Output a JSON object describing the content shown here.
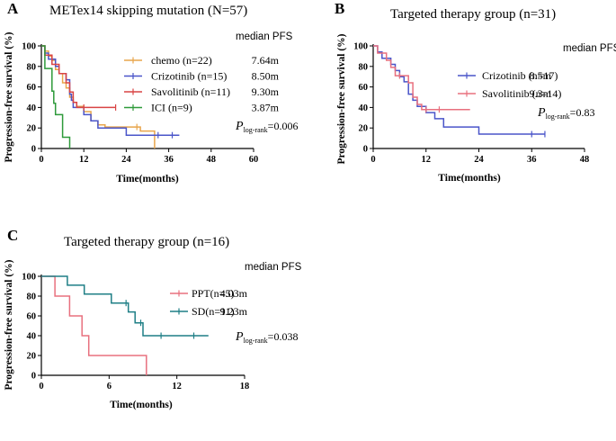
{
  "chart_data": [
    {
      "type": "line",
      "panel": "A",
      "title": "METex14 skipping mutation (N=57)",
      "xlabel": "Time(months)",
      "ylabel": "Progression-free survival (%)",
      "xticks": [
        0,
        12,
        24,
        36,
        48,
        60
      ],
      "yticks": [
        0,
        20,
        40,
        60,
        80,
        100
      ],
      "xlim": [
        0,
        60
      ],
      "ylim": [
        0,
        100
      ],
      "median_header": "median PFS",
      "p_value": {
        "italic": "P",
        "sub": "log-rank",
        "value": "=0.006"
      },
      "series": [
        {
          "name": "chemo  (n=22)",
          "median": "7.64m",
          "color": "#e8a54b",
          "points": [
            [
              0,
              100
            ],
            [
              1,
              95
            ],
            [
              2,
              90
            ],
            [
              3,
              86
            ],
            [
              4,
              77
            ],
            [
              5,
              73
            ],
            [
              6,
              64
            ],
            [
              7,
              59
            ],
            [
              8,
              50
            ],
            [
              9,
              45
            ],
            [
              10,
              41
            ],
            [
              12,
              36
            ],
            [
              14,
              27
            ],
            [
              16,
              23
            ],
            [
              18,
              21
            ],
            [
              26,
              21
            ],
            [
              28,
              17
            ],
            [
              32,
              17
            ],
            [
              32,
              0
            ]
          ],
          "censors": [
            [
              27,
              21
            ]
          ]
        },
        {
          "name": "Crizotinib (n=15)",
          "median": "8.50m",
          "color": "#4a55c9",
          "points": [
            [
              0,
              100
            ],
            [
              1,
              93
            ],
            [
              2,
              87
            ],
            [
              4,
              80
            ],
            [
              5,
              73
            ],
            [
              7,
              67
            ],
            [
              8,
              53
            ],
            [
              8.5,
              47
            ],
            [
              9,
              40
            ],
            [
              12,
              33
            ],
            [
              14,
              27
            ],
            [
              16,
              20
            ],
            [
              24,
              13
            ],
            [
              39,
              13
            ]
          ],
          "censors": [
            [
              33,
              13
            ],
            [
              37,
              13
            ]
          ]
        },
        {
          "name": "Savolitinib (n=11)",
          "median": "9.30m",
          "color": "#d94444",
          "points": [
            [
              0,
              100
            ],
            [
              1,
              91
            ],
            [
              3,
              82
            ],
            [
              5,
              73
            ],
            [
              7,
              64
            ],
            [
              8,
              55
            ],
            [
              9,
              45
            ],
            [
              10,
              40
            ],
            [
              21,
              40
            ]
          ],
          "censors": [
            [
              12,
              40
            ],
            [
              21,
              40
            ]
          ]
        },
        {
          "name": "ICI  (n=9)",
          "median": "3.87m",
          "color": "#2e9a3a",
          "points": [
            [
              0,
              100
            ],
            [
              1,
              78
            ],
            [
              2,
              78
            ],
            [
              3,
              56
            ],
            [
              3.5,
              44
            ],
            [
              4,
              33
            ],
            [
              5,
              33
            ],
            [
              6,
              11
            ],
            [
              8,
              11
            ],
            [
              8,
              0
            ]
          ],
          "censors": []
        }
      ]
    },
    {
      "type": "line",
      "panel": "B",
      "title": "Targeted therapy group (n=31)",
      "xlabel": "Time(months)",
      "ylabel": "Progression-free survival (%)",
      "xticks": [
        0,
        12,
        24,
        36,
        48
      ],
      "yticks": [
        0,
        20,
        40,
        60,
        80,
        100
      ],
      "xlim": [
        0,
        48
      ],
      "ylim": [
        0,
        100
      ],
      "median_header": "median PFS",
      "p_value": {
        "italic": "P",
        "sub": "log-rank",
        "value": "=0.83"
      },
      "series": [
        {
          "name": "Crizotinib (n=17)",
          "median": "8.5m",
          "color": "#4a55c9",
          "points": [
            [
              0,
              100
            ],
            [
              1,
              94
            ],
            [
              2,
              88
            ],
            [
              4,
              82
            ],
            [
              5,
              76
            ],
            [
              6,
              70
            ],
            [
              7,
              65
            ],
            [
              8,
              53
            ],
            [
              9,
              47
            ],
            [
              10,
              41
            ],
            [
              12,
              35
            ],
            [
              14,
              29
            ],
            [
              16,
              21
            ],
            [
              24,
              21
            ],
            [
              24,
              14
            ],
            [
              39,
              14
            ]
          ],
          "censors": [
            [
              36,
              14
            ],
            [
              39,
              14
            ]
          ]
        },
        {
          "name": "Savolitinib (n=14)",
          "median": "9.3m",
          "color": "#e8707e",
          "points": [
            [
              0,
              100
            ],
            [
              1,
              93
            ],
            [
              3,
              86
            ],
            [
              4,
              79
            ],
            [
              5,
              71
            ],
            [
              8,
              64
            ],
            [
              9,
              50
            ],
            [
              10,
              43
            ],
            [
              11,
              38
            ],
            [
              22,
              38
            ]
          ],
          "censors": [
            [
              6,
              71
            ],
            [
              12,
              38
            ],
            [
              15,
              38
            ]
          ]
        }
      ]
    },
    {
      "type": "line",
      "panel": "C",
      "title": "Targeted therapy group (n=16)",
      "xlabel": "Time(months)",
      "ylabel": "Progression-free survival (%)",
      "xticks": [
        0,
        6,
        12,
        18
      ],
      "yticks": [
        0,
        20,
        40,
        60,
        80,
        100
      ],
      "xlim": [
        0,
        18
      ],
      "ylim": [
        0,
        100
      ],
      "median_header": "median PFS",
      "p_value": {
        "italic": "P",
        "sub": "log-rank",
        "value": "=0.038"
      },
      "series": [
        {
          "name": "PPT(n=5)",
          "median": "4.03m",
          "color": "#e8707e",
          "points": [
            [
              0,
              100
            ],
            [
              1.2,
              100
            ],
            [
              1.2,
              80
            ],
            [
              2.5,
              80
            ],
            [
              2.5,
              60
            ],
            [
              3.6,
              60
            ],
            [
              3.6,
              40
            ],
            [
              4.2,
              40
            ],
            [
              4.2,
              20
            ],
            [
              9.3,
              20
            ],
            [
              9.3,
              0
            ]
          ],
          "censors": []
        },
        {
          "name": "SD(n=11)",
          "median": "9.23m",
          "color": "#1f7f86",
          "points": [
            [
              0,
              100
            ],
            [
              2.3,
              100
            ],
            [
              2.3,
              91
            ],
            [
              3.8,
              91
            ],
            [
              3.8,
              82
            ],
            [
              6.2,
              82
            ],
            [
              6.2,
              73
            ],
            [
              7.7,
              73
            ],
            [
              7.7,
              64
            ],
            [
              8.3,
              64
            ],
            [
              8.3,
              53
            ],
            [
              9.0,
              53
            ],
            [
              9.0,
              40
            ],
            [
              14.8,
              40
            ]
          ],
          "censors": [
            [
              7.5,
              73
            ],
            [
              8.8,
              53
            ],
            [
              10.6,
              40
            ],
            [
              13.5,
              40
            ]
          ]
        }
      ]
    }
  ]
}
